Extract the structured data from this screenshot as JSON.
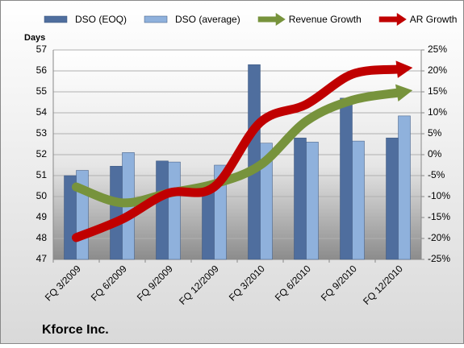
{
  "chart_data": {
    "type": "combo",
    "y_label": "Days",
    "footer": "Kforce Inc.",
    "categories": [
      "FQ 3/2009",
      "FQ 6/2009",
      "FQ 9/2009",
      "FQ 12/2009",
      "FQ 3/2010",
      "FQ 6/2010",
      "FQ 9/2010",
      "FQ 12/2010"
    ],
    "series": [
      {
        "name": "DSO (EOQ)",
        "type": "bar",
        "color": "#4f6e9e",
        "values": [
          51.0,
          51.45,
          51.7,
          50.4,
          56.3,
          52.8,
          54.7,
          52.8
        ]
      },
      {
        "name": "DSO (average)",
        "type": "bar",
        "color": "#8fb1dc",
        "values": [
          51.25,
          52.1,
          51.65,
          51.5,
          52.55,
          52.6,
          52.65,
          53.85
        ]
      },
      {
        "name": "Revenue Growth",
        "type": "line",
        "axis": "y2",
        "color": "#77933c",
        "values": [
          -7.7,
          -11.5,
          -9.2,
          -7.0,
          -2.5,
          8.0,
          13.0,
          14.8
        ]
      },
      {
        "name": "AR Growth",
        "type": "line",
        "axis": "y2",
        "color": "#c00000",
        "values": [
          -19.8,
          -15.4,
          -9.2,
          -7.7,
          7.7,
          12.0,
          19.2,
          20.4
        ]
      }
    ],
    "ylim": [
      47,
      57
    ],
    "yticks": [
      47,
      48,
      49,
      50,
      51,
      52,
      53,
      54,
      55,
      56,
      57
    ],
    "y2lim": [
      -25,
      25
    ],
    "y2ticks": [
      {
        "value": -25,
        "label": "-25%"
      },
      {
        "value": -20,
        "label": "-20%"
      },
      {
        "value": -15,
        "label": "-15%"
      },
      {
        "value": -10,
        "label": "-10%"
      },
      {
        "value": -5,
        "label": "-5%"
      },
      {
        "value": 0,
        "label": "0%"
      },
      {
        "value": 5,
        "label": "5%"
      },
      {
        "value": 10,
        "label": "10%"
      },
      {
        "value": 15,
        "label": "15%"
      },
      {
        "value": 20,
        "label": "20%"
      },
      {
        "value": 25,
        "label": "25%"
      }
    ],
    "grid": true
  }
}
